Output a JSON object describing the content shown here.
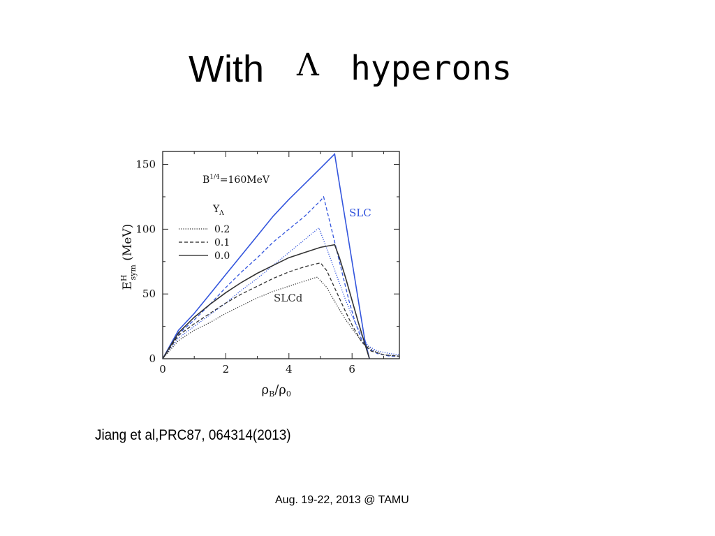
{
  "slide": {
    "title_word": "With",
    "title_symbol": "Λ",
    "title_rest": "hyperons",
    "citation": "Jiang et al,PRC87, 064314(2013)",
    "footer": "Aug. 19-22, 2013 @ TAMU"
  },
  "chart_data": {
    "type": "line",
    "title": "",
    "xlabel": "ρB/ρ0",
    "ylabel": "E^H_sym (MeV)",
    "xlim": [
      0,
      7.5
    ],
    "ylim": [
      0,
      160
    ],
    "xticks": [
      0,
      2,
      4,
      6
    ],
    "yticks": [
      0,
      50,
      100,
      150
    ],
    "annotations": {
      "bag": "B",
      "bag_sup": "1/4",
      "bag_value": "=160MeV",
      "legend_title": "Y",
      "legend_title_sub": "Λ",
      "slc_label": "SLC",
      "slcd_label": "SLCd"
    },
    "legend": [
      {
        "label": "0.2",
        "style": "dotted"
      },
      {
        "label": "0.1",
        "style": "dashed"
      },
      {
        "label": "0.0",
        "style": "solid"
      }
    ],
    "colors": {
      "slc": "#3355dd",
      "slcd": "#333333"
    },
    "series": [
      {
        "group": "SLC",
        "yl": "0.0",
        "style": "solid",
        "color": "#3355dd",
        "x": [
          0,
          0.5,
          1,
          1.5,
          2,
          2.5,
          3,
          3.5,
          4,
          4.5,
          5,
          5.45,
          5.6,
          5.8,
          6,
          6.2,
          6.4,
          6.55
        ],
        "y": [
          0,
          22,
          35,
          50,
          65,
          80,
          95,
          110,
          123,
          135,
          147,
          158,
          135,
          105,
          75,
          45,
          15,
          0
        ]
      },
      {
        "group": "SLC",
        "yl": "0.1",
        "style": "dashed",
        "color": "#3355dd",
        "x": [
          0,
          0.5,
          1,
          1.5,
          2,
          2.5,
          3,
          3.5,
          4,
          4.5,
          5,
          5.1,
          5.3,
          5.5,
          5.7,
          5.9,
          6.1,
          6.3,
          6.5,
          6.8,
          7.2,
          7.5
        ],
        "y": [
          0,
          19,
          30,
          42,
          55,
          67,
          78,
          90,
          100,
          110,
          122,
          125,
          105,
          85,
          65,
          45,
          28,
          15,
          8,
          4,
          2,
          2
        ]
      },
      {
        "group": "SLC",
        "yl": "0.2",
        "style": "dotted",
        "color": "#3355dd",
        "x": [
          0,
          0.5,
          1,
          1.5,
          2,
          2.5,
          3,
          3.5,
          4,
          4.5,
          4.95,
          5.2,
          5.5,
          5.8,
          6,
          6.3,
          6.5,
          6.8,
          7.2,
          7.5
        ],
        "y": [
          0,
          16,
          25,
          34,
          43,
          53,
          62,
          72,
          82,
          92,
          101,
          85,
          65,
          45,
          33,
          18,
          10,
          6,
          4,
          3
        ]
      },
      {
        "group": "SLCd",
        "yl": "0.0",
        "style": "solid",
        "color": "#333333",
        "x": [
          0,
          0.5,
          1,
          1.5,
          2,
          2.5,
          3,
          3.5,
          4,
          4.5,
          5,
          5.45,
          5.6,
          5.8,
          6,
          6.2,
          6.4,
          6.55
        ],
        "y": [
          0,
          20,
          32,
          42,
          51,
          59,
          66,
          72,
          78,
          82,
          86,
          88,
          78,
          62,
          45,
          28,
          12,
          0
        ]
      },
      {
        "group": "SLCd",
        "yl": "0.1",
        "style": "dashed",
        "color": "#333333",
        "x": [
          0,
          0.5,
          1,
          1.5,
          2,
          2.5,
          3,
          3.5,
          4,
          4.5,
          5,
          5.2,
          5.5,
          5.8,
          6,
          6.3,
          6.6,
          7,
          7.5
        ],
        "y": [
          0,
          18,
          27,
          35,
          43,
          50,
          56,
          62,
          67,
          71,
          74,
          68,
          52,
          36,
          26,
          13,
          6,
          3,
          2
        ]
      },
      {
        "group": "SLCd",
        "yl": "0.2",
        "style": "dotted",
        "color": "#333333",
        "x": [
          0,
          0.5,
          1,
          1.5,
          2,
          2.5,
          3,
          3.5,
          4,
          4.5,
          4.9,
          5.2,
          5.5,
          5.8,
          6.1,
          6.4,
          6.7,
          7,
          7.5
        ],
        "y": [
          0,
          14,
          22,
          28,
          35,
          41,
          47,
          52,
          56,
          60,
          63,
          55,
          42,
          30,
          20,
          11,
          6,
          3,
          2
        ]
      }
    ]
  }
}
